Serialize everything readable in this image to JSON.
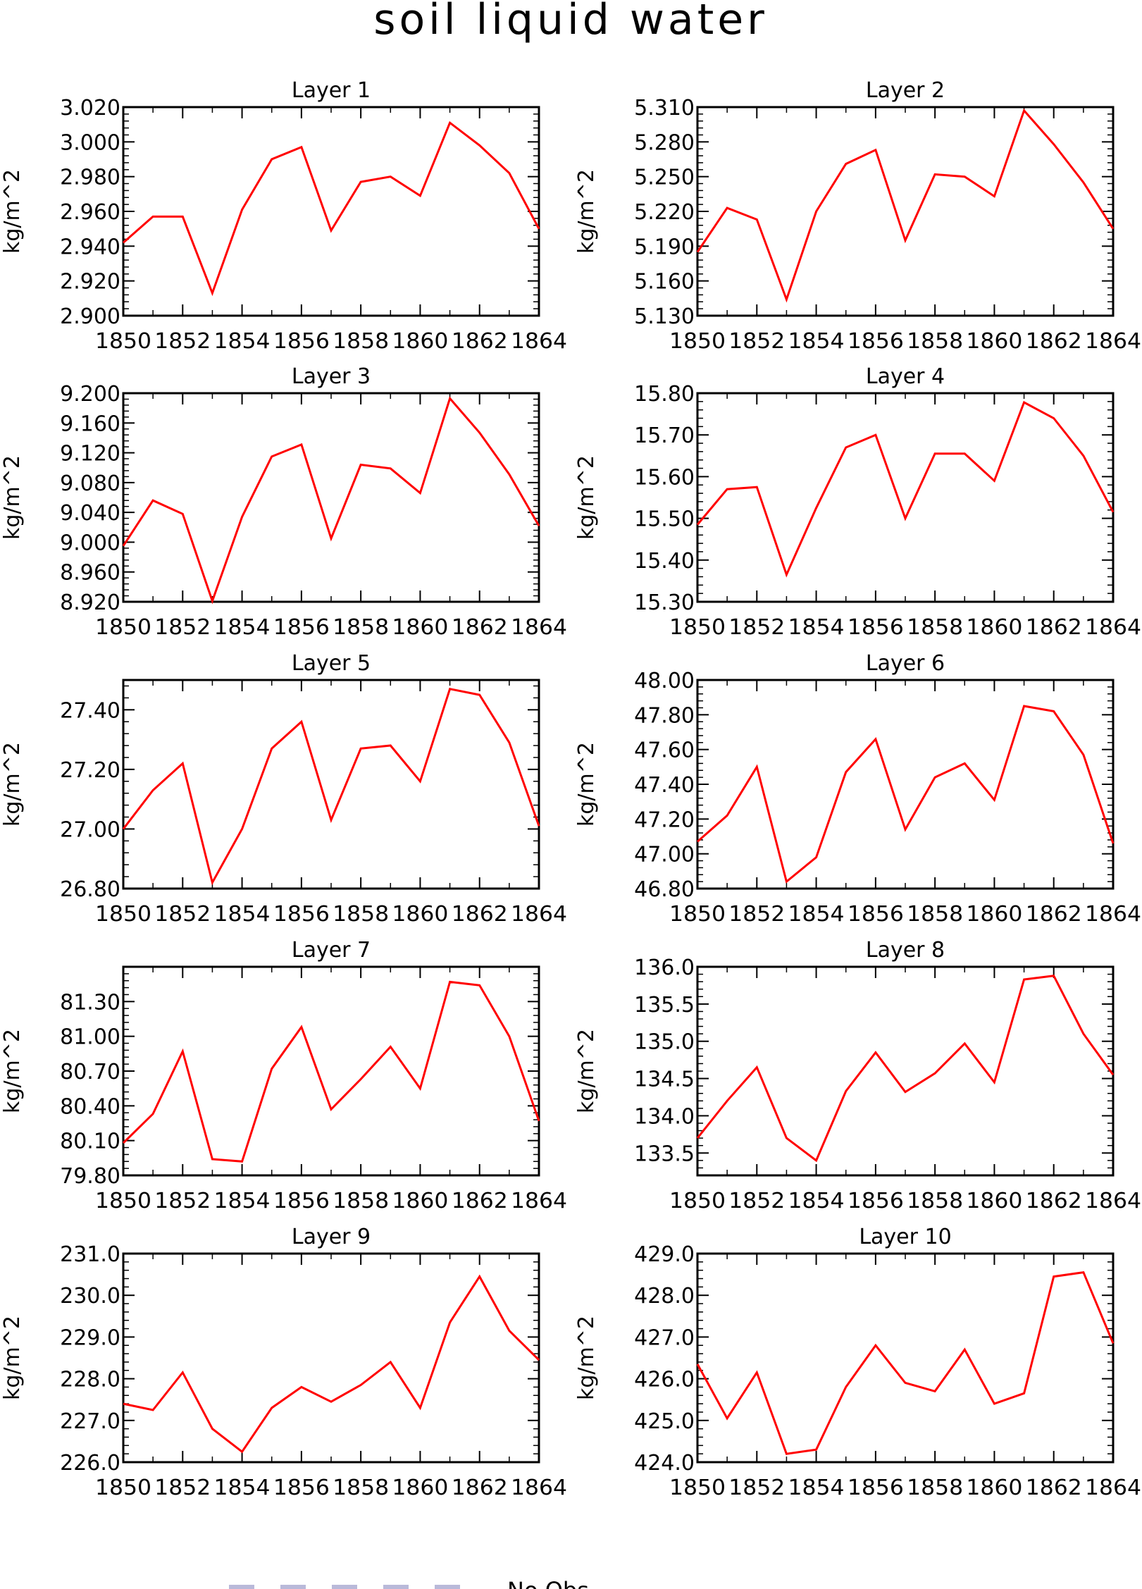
{
  "title": "soil liquid water",
  "legend": {
    "label": "No Obs"
  },
  "colors": {
    "line": "#ff0000",
    "axis": "#000000",
    "legend_box": "#b9b9d9"
  },
  "chart_data": [
    {
      "type": "line",
      "title": "Layer 1",
      "ylabel": "kg/m^2",
      "x": [
        1850,
        1851,
        1852,
        1853,
        1854,
        1855,
        1856,
        1857,
        1858,
        1859,
        1860,
        1861,
        1862,
        1863,
        1864
      ],
      "values": [
        2.942,
        2.957,
        2.957,
        2.913,
        2.961,
        2.99,
        2.997,
        2.949,
        2.977,
        2.98,
        2.969,
        3.011,
        2.998,
        2.982,
        2.95
      ],
      "ylim": [
        2.9,
        3.02
      ],
      "yticks": [
        "2.900",
        "2.920",
        "2.940",
        "2.960",
        "2.980",
        "3.000",
        "3.020"
      ],
      "xticks": [
        "1850",
        "1852",
        "1854",
        "1856",
        "1858",
        "1860",
        "1862",
        "1864"
      ],
      "grid": false
    },
    {
      "type": "line",
      "title": "Layer 2",
      "ylabel": "kg/m^2",
      "x": [
        1850,
        1851,
        1852,
        1853,
        1854,
        1855,
        1856,
        1857,
        1858,
        1859,
        1860,
        1861,
        1862,
        1863,
        1864
      ],
      "values": [
        5.185,
        5.223,
        5.213,
        5.144,
        5.22,
        5.261,
        5.273,
        5.195,
        5.252,
        5.25,
        5.233,
        5.307,
        5.278,
        5.245,
        5.205
      ],
      "ylim": [
        5.13,
        5.31
      ],
      "yticks": [
        "5.130",
        "5.160",
        "5.190",
        "5.220",
        "5.250",
        "5.280",
        "5.310"
      ],
      "xticks": [
        "1850",
        "1852",
        "1854",
        "1856",
        "1858",
        "1860",
        "1862",
        "1864"
      ],
      "grid": false
    },
    {
      "type": "line",
      "title": "Layer 3",
      "ylabel": "kg/m^2",
      "x": [
        1850,
        1851,
        1852,
        1853,
        1854,
        1855,
        1856,
        1857,
        1858,
        1859,
        1860,
        1861,
        1862,
        1863,
        1864
      ],
      "values": [
        8.995,
        9.056,
        9.038,
        8.921,
        9.034,
        9.115,
        9.131,
        9.005,
        9.104,
        9.099,
        9.066,
        9.193,
        9.147,
        9.091,
        9.022
      ],
      "ylim": [
        8.92,
        9.2
      ],
      "yticks": [
        "8.920",
        "8.960",
        "9.000",
        "9.040",
        "9.080",
        "9.120",
        "9.160",
        "9.200"
      ],
      "xticks": [
        "1850",
        "1852",
        "1854",
        "1856",
        "1858",
        "1860",
        "1862",
        "1864"
      ],
      "grid": false
    },
    {
      "type": "line",
      "title": "Layer 4",
      "ylabel": "kg/m^2",
      "x": [
        1850,
        1851,
        1852,
        1853,
        1854,
        1855,
        1856,
        1857,
        1858,
        1859,
        1860,
        1861,
        1862,
        1863,
        1864
      ],
      "values": [
        15.485,
        15.57,
        15.575,
        15.365,
        15.525,
        15.67,
        15.7,
        15.5,
        15.655,
        15.655,
        15.59,
        15.778,
        15.74,
        15.65,
        15.515
      ],
      "ylim": [
        15.3,
        15.8
      ],
      "yticks": [
        "15.30",
        "15.40",
        "15.50",
        "15.60",
        "15.70",
        "15.80"
      ],
      "xticks": [
        "1850",
        "1852",
        "1854",
        "1856",
        "1858",
        "1860",
        "1862",
        "1864"
      ],
      "grid": false
    },
    {
      "type": "line",
      "title": "Layer 5",
      "ylabel": "kg/m^2",
      "x": [
        1850,
        1851,
        1852,
        1853,
        1854,
        1855,
        1856,
        1857,
        1858,
        1859,
        1860,
        1861,
        1862,
        1863,
        1864
      ],
      "values": [
        27.0,
        27.13,
        27.22,
        26.82,
        27.0,
        27.27,
        27.36,
        27.03,
        27.27,
        27.28,
        27.16,
        27.47,
        27.45,
        27.29,
        27.01
      ],
      "ylim": [
        26.8,
        27.5
      ],
      "yticks": [
        "26.80",
        "27.00",
        "27.20",
        "27.40"
      ],
      "xticks": [
        "1850",
        "1852",
        "1854",
        "1856",
        "1858",
        "1860",
        "1862",
        "1864"
      ],
      "grid": false
    },
    {
      "type": "line",
      "title": "Layer 6",
      "ylabel": "kg/m^2",
      "x": [
        1850,
        1851,
        1852,
        1853,
        1854,
        1855,
        1856,
        1857,
        1858,
        1859,
        1860,
        1861,
        1862,
        1863,
        1864
      ],
      "values": [
        47.07,
        47.22,
        47.5,
        46.84,
        46.98,
        47.47,
        47.66,
        47.14,
        47.44,
        47.52,
        47.31,
        47.85,
        47.82,
        47.57,
        47.06
      ],
      "ylim": [
        46.8,
        48.0
      ],
      "yticks": [
        "46.80",
        "47.00",
        "47.20",
        "47.40",
        "47.60",
        "47.80",
        "48.00"
      ],
      "xticks": [
        "1850",
        "1852",
        "1854",
        "1856",
        "1858",
        "1860",
        "1862",
        "1864"
      ],
      "grid": false
    },
    {
      "type": "line",
      "title": "Layer 7",
      "ylabel": "kg/m^2",
      "x": [
        1850,
        1851,
        1852,
        1853,
        1854,
        1855,
        1856,
        1857,
        1858,
        1859,
        1860,
        1861,
        1862,
        1863,
        1864
      ],
      "values": [
        80.08,
        80.33,
        80.87,
        79.94,
        79.92,
        80.72,
        81.08,
        80.37,
        80.63,
        80.91,
        80.55,
        81.47,
        81.44,
        81.0,
        80.27
      ],
      "ylim": [
        79.8,
        81.6
      ],
      "yticks": [
        "79.80",
        "80.10",
        "80.40",
        "80.70",
        "81.00",
        "81.30"
      ],
      "xticks": [
        "1850",
        "1852",
        "1854",
        "1856",
        "1858",
        "1860",
        "1862",
        "1864"
      ],
      "grid": false
    },
    {
      "type": "line",
      "title": "Layer 8",
      "ylabel": "kg/m^2",
      "x": [
        1850,
        1851,
        1852,
        1853,
        1854,
        1855,
        1856,
        1857,
        1858,
        1859,
        1860,
        1861,
        1862,
        1863,
        1864
      ],
      "values": [
        133.7,
        134.2,
        134.65,
        133.7,
        133.4,
        134.33,
        134.85,
        134.32,
        134.57,
        134.97,
        134.45,
        135.83,
        135.88,
        135.1,
        134.55
      ],
      "ylim": [
        133.2,
        136.0
      ],
      "yticks": [
        "133.5",
        "134.0",
        "134.5",
        "135.0",
        "135.5",
        "136.0"
      ],
      "xticks": [
        "1850",
        "1852",
        "1854",
        "1856",
        "1858",
        "1860",
        "1862",
        "1864"
      ],
      "grid": false
    },
    {
      "type": "line",
      "title": "Layer 9",
      "ylabel": "kg/m^2",
      "x": [
        1850,
        1851,
        1852,
        1853,
        1854,
        1855,
        1856,
        1857,
        1858,
        1859,
        1860,
        1861,
        1862,
        1863,
        1864
      ],
      "values": [
        227.4,
        227.25,
        228.15,
        226.8,
        226.25,
        227.3,
        227.8,
        227.45,
        227.85,
        228.4,
        227.3,
        229.35,
        230.45,
        229.15,
        228.45
      ],
      "ylim": [
        226.0,
        231.0
      ],
      "yticks": [
        "226.0",
        "227.0",
        "228.0",
        "229.0",
        "230.0",
        "231.0"
      ],
      "xticks": [
        "1850",
        "1852",
        "1854",
        "1856",
        "1858",
        "1860",
        "1862",
        "1864"
      ],
      "grid": false
    },
    {
      "type": "line",
      "title": "Layer 10",
      "ylabel": "kg/m^2",
      "x": [
        1850,
        1851,
        1852,
        1853,
        1854,
        1855,
        1856,
        1857,
        1858,
        1859,
        1860,
        1861,
        1862,
        1863,
        1864
      ],
      "values": [
        426.35,
        425.05,
        426.15,
        424.2,
        424.3,
        425.8,
        426.8,
        425.9,
        425.7,
        426.7,
        425.4,
        425.65,
        428.45,
        428.55,
        426.85
      ],
      "ylim": [
        424.0,
        429.0
      ],
      "yticks": [
        "424.0",
        "425.0",
        "426.0",
        "427.0",
        "428.0",
        "429.0"
      ],
      "xticks": [
        "1850",
        "1852",
        "1854",
        "1856",
        "1858",
        "1860",
        "1862",
        "1864"
      ],
      "grid": false
    }
  ]
}
